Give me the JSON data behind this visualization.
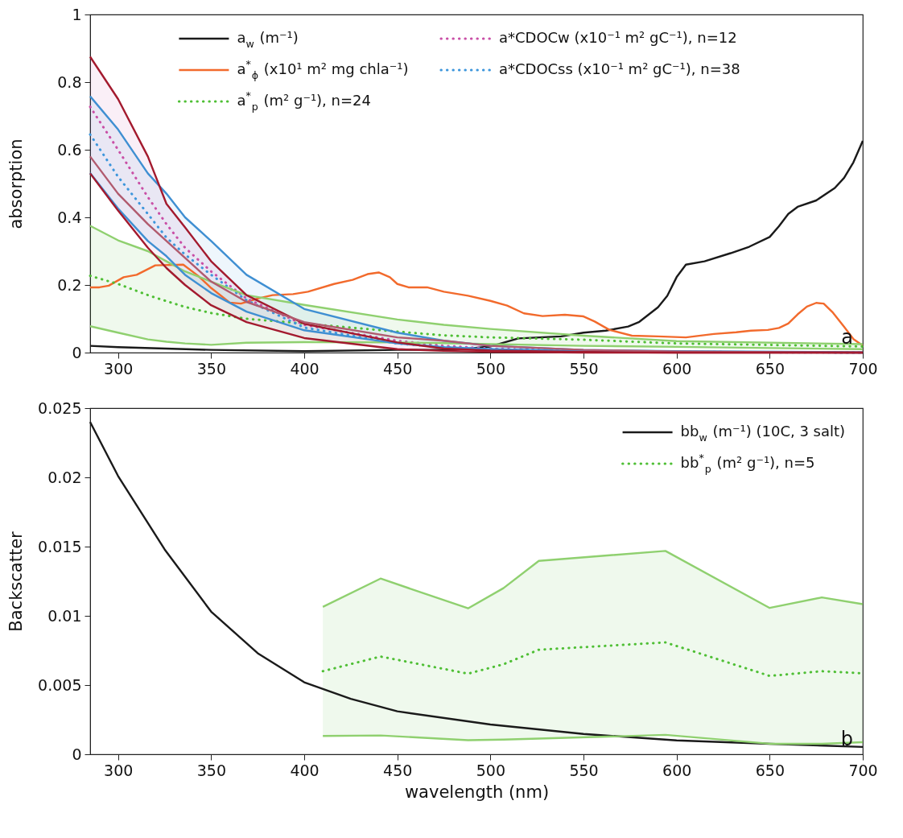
{
  "chart_data": [
    {
      "type": "line",
      "ylabel": "absorption",
      "xlim": [
        285,
        700
      ],
      "xticks": [
        300,
        350,
        400,
        450,
        500,
        550,
        600,
        650,
        700
      ],
      "ylim": [
        0,
        1
      ],
      "yticks": [
        0,
        0.2,
        0.4,
        0.6,
        0.8,
        1
      ],
      "grid": false,
      "legend": "top",
      "annotations": [
        "a"
      ],
      "series": [
        {
          "name": "a$_{w}$ (m⁻¹)",
          "color": "#1a1a1a",
          "line_style": "solid",
          "x": [
            285,
            300,
            350,
            400,
            450,
            480,
            500,
            515,
            538,
            550,
            562,
            574,
            580,
            590,
            595,
            600,
            605,
            615,
            629,
            639,
            650,
            655,
            660,
            665,
            675,
            685,
            690,
            695,
            700
          ],
          "values": [
            0.02,
            0.016,
            0.008,
            0.004,
            0.008,
            0.008,
            0.018,
            0.042,
            0.048,
            0.059,
            0.065,
            0.077,
            0.091,
            0.134,
            0.168,
            0.223,
            0.26,
            0.27,
            0.294,
            0.313,
            0.342,
            0.374,
            0.41,
            0.431,
            0.45,
            0.487,
            0.517,
            0.563,
            0.626
          ]
        },
        {
          "name": "a$^{*}$$_{ϕ}$ (x10¹ m² mg chla⁻¹)",
          "color": "#f26a2c",
          "line_style": "solid",
          "x": [
            285,
            290,
            295,
            303,
            310,
            320,
            335,
            343,
            350,
            360,
            366,
            375,
            383,
            394,
            402,
            416,
            426,
            434,
            440,
            446,
            450,
            456,
            466,
            475,
            488,
            500,
            509,
            518,
            528,
            540,
            550,
            556,
            564,
            576,
            590,
            605,
            620,
            632,
            640,
            649,
            655,
            660,
            665,
            670,
            675,
            679,
            684,
            690,
            695,
            700
          ],
          "values": [
            0.193,
            0.193,
            0.198,
            0.223,
            0.23,
            0.258,
            0.26,
            0.227,
            0.191,
            0.148,
            0.145,
            0.16,
            0.17,
            0.173,
            0.18,
            0.203,
            0.215,
            0.232,
            0.237,
            0.223,
            0.203,
            0.193,
            0.193,
            0.18,
            0.168,
            0.153,
            0.139,
            0.116,
            0.108,
            0.112,
            0.107,
            0.092,
            0.067,
            0.05,
            0.048,
            0.045,
            0.055,
            0.06,
            0.065,
            0.067,
            0.073,
            0.086,
            0.113,
            0.136,
            0.147,
            0.145,
            0.118,
            0.076,
            0.04,
            0.021
          ]
        },
        {
          "name": "a$^{*}$$_{p}$ (m² g⁻¹), n=24",
          "color": "#4fbf35",
          "line_style": "dotted",
          "x": [
            285,
            300,
            316,
            326,
            336,
            350,
            369,
            400,
            450,
            475,
            500,
            550,
            600,
            700
          ],
          "values": [
            0.227,
            0.203,
            0.17,
            0.152,
            0.135,
            0.117,
            0.1,
            0.086,
            0.062,
            0.051,
            0.045,
            0.038,
            0.027,
            0.018
          ],
          "lower": [
            0.078,
            0.059,
            0.039,
            0.032,
            0.027,
            0.023,
            0.029,
            0.031,
            0.03,
            0.028,
            0.025,
            0.02,
            0.017,
            0.01
          ],
          "upper": [
            0.375,
            0.332,
            0.3,
            0.27,
            0.24,
            0.21,
            0.17,
            0.141,
            0.098,
            0.082,
            0.07,
            0.05,
            0.034,
            0.025
          ]
        },
        {
          "name": "a*CDOCw (x10⁻¹ m² gC⁻¹), n=12",
          "color": "#c94fa6",
          "line_style": "dotted",
          "x": [
            285,
            300,
            316,
            326,
            336,
            350,
            369,
            400,
            450,
            475,
            500,
            550,
            600,
            700
          ],
          "values": [
            0.727,
            0.6,
            0.46,
            0.38,
            0.31,
            0.24,
            0.16,
            0.082,
            0.035,
            0.02,
            0.012,
            0.005,
            0.002,
            0
          ],
          "lower": [
            0.53,
            0.42,
            0.31,
            0.25,
            0.2,
            0.14,
            0.09,
            0.043,
            0.01,
            0.005,
            0.002,
            0,
            0,
            0
          ],
          "upper": [
            0.875,
            0.75,
            0.58,
            0.44,
            0.37,
            0.27,
            0.17,
            0.085,
            0.03,
            0.012,
            0.006,
            0.002,
            0,
            0
          ]
        },
        {
          "name": "a*CDOCss (x10⁻¹ m² gC⁻¹), n=38",
          "color": "#3d96dc",
          "line_style": "dotted",
          "x": [
            285,
            300,
            316,
            326,
            336,
            350,
            369,
            400,
            450,
            475,
            500,
            550,
            600,
            700
          ],
          "values": [
            0.645,
            0.52,
            0.41,
            0.34,
            0.29,
            0.23,
            0.155,
            0.074,
            0.027,
            0.016,
            0.01,
            0.004,
            0.002,
            0
          ],
          "lower": [
            0.531,
            0.426,
            0.33,
            0.285,
            0.23,
            0.176,
            0.121,
            0.066,
            0.027,
            0.016,
            0.01,
            0.004,
            0.002,
            0
          ],
          "upper": [
            0.758,
            0.66,
            0.53,
            0.47,
            0.4,
            0.33,
            0.23,
            0.129,
            0.059,
            0.035,
            0.02,
            0.008,
            0.004,
            0.001
          ]
        },
        {
          "color": "#8fd06f",
          "line_style": "solid",
          "x": [
            285,
            300,
            316,
            326,
            336,
            350,
            369,
            400,
            450,
            475,
            500,
            550,
            600,
            700
          ],
          "values": [
            0.375,
            0.332,
            0.3,
            0.27,
            0.24,
            0.21,
            0.17,
            0.141,
            0.098,
            0.082,
            0.07,
            0.05,
            0.034,
            0.025
          ]
        },
        {
          "color": "#8fd06f",
          "line_style": "solid",
          "x": [
            285,
            300,
            316,
            326,
            336,
            350,
            369,
            400,
            450,
            475,
            500,
            550,
            600,
            700
          ],
          "values": [
            0.078,
            0.059,
            0.039,
            0.032,
            0.027,
            0.023,
            0.029,
            0.031,
            0.03,
            0.028,
            0.025,
            0.02,
            0.017,
            0.01
          ]
        },
        {
          "color": "#3f8fd2",
          "line_style": "solid",
          "x": [
            285,
            300,
            316,
            326,
            336,
            350,
            369,
            400,
            450,
            475,
            500,
            550,
            600,
            700
          ],
          "values": [
            0.758,
            0.66,
            0.53,
            0.47,
            0.4,
            0.33,
            0.23,
            0.129,
            0.059,
            0.035,
            0.02,
            0.008,
            0.004,
            0.001
          ]
        },
        {
          "color": "#3f8fd2",
          "line_style": "solid",
          "x": [
            285,
            300,
            316,
            326,
            336,
            350,
            369,
            400,
            450,
            475,
            500,
            550,
            600,
            700
          ],
          "values": [
            0.531,
            0.426,
            0.33,
            0.285,
            0.23,
            0.176,
            0.121,
            0.066,
            0.027,
            0.016,
            0.01,
            0.004,
            0.002,
            0
          ]
        },
        {
          "color": "#a31a2e",
          "line_style": "solid",
          "x": [
            285,
            300,
            316,
            326,
            336,
            350,
            369,
            400,
            450,
            475,
            500,
            550,
            600,
            700
          ],
          "values": [
            0.875,
            0.75,
            0.58,
            0.44,
            0.37,
            0.27,
            0.17,
            0.085,
            0.03,
            0.012,
            0.006,
            0.002,
            0,
            0
          ]
        },
        {
          "color": "#b15a6e",
          "line_style": "solid",
          "x": [
            285,
            300,
            316,
            326,
            336,
            350,
            369,
            400,
            450,
            475,
            500,
            550,
            600,
            700
          ],
          "values": [
            0.58,
            0.47,
            0.38,
            0.33,
            0.28,
            0.21,
            0.15,
            0.09,
            0.045,
            0.035,
            0.02,
            0.008,
            0.003,
            0
          ]
        },
        {
          "color": "#a31a2e",
          "line_style": "solid",
          "x": [
            285,
            300,
            316,
            326,
            336,
            350,
            369,
            400,
            450,
            475,
            500,
            550,
            600,
            700
          ],
          "values": [
            0.53,
            0.42,
            0.31,
            0.25,
            0.2,
            0.14,
            0.09,
            0.043,
            0.01,
            0.005,
            0.002,
            0,
            0,
            0
          ]
        }
      ]
    },
    {
      "type": "line",
      "xlabel": "wavelength (nm)",
      "ylabel": "Backscatter",
      "xlim": [
        285,
        700
      ],
      "xticks": [
        300,
        350,
        400,
        450,
        500,
        550,
        600,
        650,
        700
      ],
      "ylim": [
        0,
        0.025
      ],
      "yticks": [
        0,
        0.005,
        0.01,
        0.015,
        0.02,
        0.025
      ],
      "grid": false,
      "legend": "top right",
      "annotations": [
        "b"
      ],
      "series": [
        {
          "name": "bb$_{w}$ (m⁻¹) (10C, 3 salt)",
          "color": "#1a1a1a",
          "line_style": "solid",
          "x": [
            285,
            300,
            325,
            350,
            375,
            400,
            425,
            450,
            500,
            550,
            600,
            650,
            700
          ],
          "values": [
            0.024,
            0.0201,
            0.0148,
            0.0103,
            0.0073,
            0.0052,
            0.004,
            0.0031,
            0.00215,
            0.00147,
            0.001,
            0.00076,
            0.00053
          ]
        },
        {
          "name": "bb$^{*}$$_{p}$ (m² g⁻¹), n=5",
          "color": "#4fbf35",
          "line_style": "dotted",
          "x": [
            410,
            441,
            488,
            507,
            526,
            594,
            650,
            678,
            700
          ],
          "values": [
            0.006,
            0.00706,
            0.00582,
            0.0065,
            0.00755,
            0.00808,
            0.00566,
            0.006,
            0.00585
          ],
          "lower": [
            0.00132,
            0.00136,
            0.00102,
            0.00106,
            0.00113,
            0.0014,
            0.00076,
            0.00076,
            0.00087
          ],
          "upper": [
            0.01065,
            0.01269,
            0.01054,
            0.012,
            0.01397,
            0.01469,
            0.01057,
            0.01133,
            0.01084
          ]
        },
        {
          "color": "#8fd06f",
          "line_style": "solid",
          "x": [
            410,
            441,
            488,
            507,
            526,
            594,
            650,
            678,
            700
          ],
          "values": [
            0.01065,
            0.01269,
            0.01054,
            0.012,
            0.01397,
            0.01469,
            0.01057,
            0.01133,
            0.01084
          ]
        },
        {
          "color": "#8fd06f",
          "line_style": "solid",
          "x": [
            410,
            441,
            488,
            507,
            526,
            594,
            650,
            678,
            700
          ],
          "values": [
            0.00132,
            0.00136,
            0.00102,
            0.00106,
            0.00113,
            0.0014,
            0.00076,
            0.00076,
            0.00087
          ]
        }
      ]
    }
  ]
}
